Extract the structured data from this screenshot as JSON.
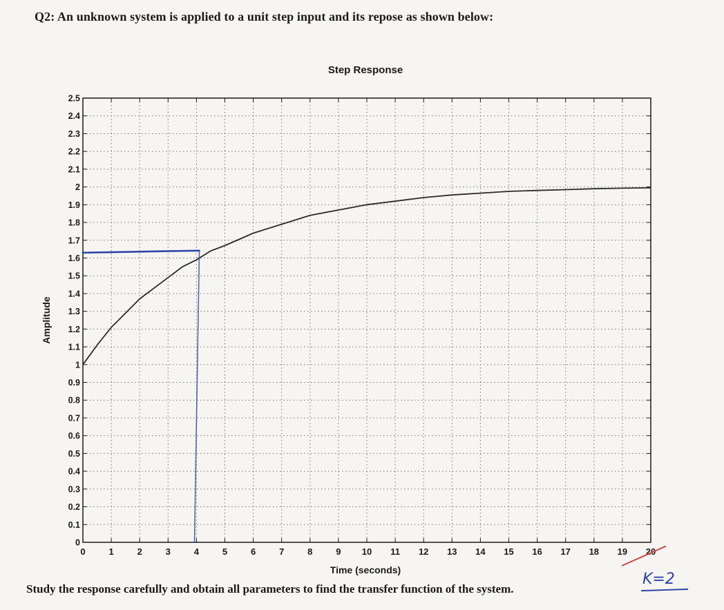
{
  "question": "Q2: An unknown system is applied to a unit step input and its repose as shown below:",
  "footer": "Study the response carefully and obtain all parameters to find the transfer function of the system.",
  "handwritten_note": "K=2",
  "colors": {
    "curve": "#2a2a2a",
    "annotation": "#2b45a8",
    "grid": "#555555"
  },
  "chart_data": {
    "type": "line",
    "title": "Step Response",
    "xlabel": "Time (seconds)",
    "ylabel": "Amplitude",
    "xlim": [
      0,
      20
    ],
    "ylim": [
      0,
      2.5
    ],
    "xticks": [
      0,
      1,
      2,
      3,
      4,
      5,
      6,
      7,
      8,
      9,
      10,
      11,
      12,
      13,
      14,
      15,
      16,
      17,
      18,
      19,
      20
    ],
    "yticks": [
      0,
      0.1,
      0.2,
      0.3,
      0.4,
      0.5,
      0.6,
      0.7,
      0.8,
      0.9,
      1,
      1.1,
      1.2,
      1.3,
      1.4,
      1.5,
      1.6,
      1.7,
      1.8,
      1.9,
      2,
      2.1,
      2.2,
      2.3,
      2.4,
      2.5
    ],
    "ytick_labels": [
      "0",
      "0.1",
      "0.2",
      "0.3",
      "0.4",
      "0.5",
      "0.6",
      "0.7",
      "0.8",
      "0.9",
      "1",
      "1.1",
      "1.2",
      "1.3",
      "1.4",
      "1.5",
      "1.6",
      "1.7",
      "1.8",
      "1.9",
      "2",
      "2.1",
      "2.2",
      "2.3",
      "2.4",
      "2.5"
    ],
    "grid": true,
    "series": [
      {
        "x": [
          0,
          0.5,
          1,
          1.5,
          2,
          2.5,
          3,
          3.5,
          4,
          4.5,
          5,
          6,
          7,
          8,
          9,
          10,
          11,
          12,
          13,
          14,
          15,
          16,
          17,
          18,
          19,
          20
        ],
        "y": [
          1.0,
          1.11,
          1.21,
          1.29,
          1.37,
          1.43,
          1.49,
          1.55,
          1.59,
          1.64,
          1.67,
          1.74,
          1.79,
          1.84,
          1.87,
          1.9,
          1.92,
          1.94,
          1.955,
          1.965,
          1.975,
          1.98,
          1.985,
          1.99,
          1.993,
          1.995
        ]
      }
    ],
    "annotations": [
      {
        "type": "hline",
        "x": [
          0,
          4.1
        ],
        "y": 1.63
      },
      {
        "type": "vline",
        "x": 4.1,
        "y": [
          0,
          1.63
        ]
      }
    ]
  }
}
